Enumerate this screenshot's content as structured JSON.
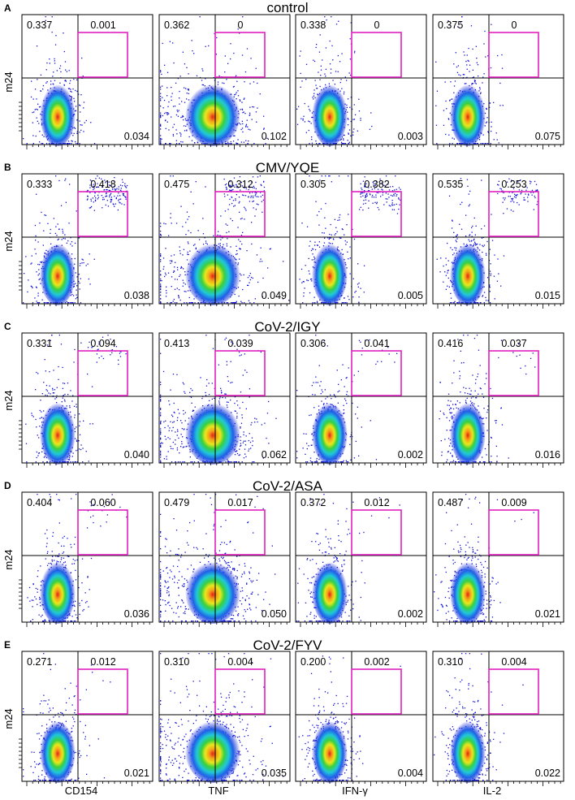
{
  "chart_data": {
    "type": "scatter",
    "plot_style": "flow cytometry density dot plots (pseudocolor)",
    "x_axis_labels": [
      "CD154",
      "TNF",
      "IFN-γ",
      "IL-2"
    ],
    "y_axis_label": "m24",
    "gate_color": "#e020c0",
    "scale": "log (biexponential)",
    "panels": [
      {
        "label": "A",
        "title": "control",
        "plots": [
          {
            "marker": "CD154",
            "upper_left": "0.337",
            "upper_right": "0.001",
            "lower_right": "0.034"
          },
          {
            "marker": "TNF",
            "upper_left": "0.362",
            "upper_right": "0",
            "lower_right": "0.102"
          },
          {
            "marker": "IFN-γ",
            "upper_left": "0.338",
            "upper_right": "0",
            "lower_right": "0.003"
          },
          {
            "marker": "IL-2",
            "upper_left": "0.375",
            "upper_right": "0",
            "lower_right": "0.075"
          }
        ]
      },
      {
        "label": "B",
        "title": "CMV/YQE",
        "plots": [
          {
            "marker": "CD154",
            "upper_left": "0.333",
            "upper_right": "0.418",
            "lower_right": "0.038"
          },
          {
            "marker": "TNF",
            "upper_left": "0.475",
            "upper_right": "0.312",
            "lower_right": "0.049"
          },
          {
            "marker": "IFN-γ",
            "upper_left": "0.305",
            "upper_right": "0.382",
            "lower_right": "0.005"
          },
          {
            "marker": "IL-2",
            "upper_left": "0.535",
            "upper_right": "0.253",
            "lower_right": "0.015"
          }
        ]
      },
      {
        "label": "C",
        "title": "CoV-2/IGY",
        "plots": [
          {
            "marker": "CD154",
            "upper_left": "0.331",
            "upper_right": "0.094",
            "lower_right": "0.040"
          },
          {
            "marker": "TNF",
            "upper_left": "0.413",
            "upper_right": "0.039",
            "lower_right": "0.062"
          },
          {
            "marker": "IFN-γ",
            "upper_left": "0.306",
            "upper_right": "0.041",
            "lower_right": "0.002"
          },
          {
            "marker": "IL-2",
            "upper_left": "0.416",
            "upper_right": "0.037",
            "lower_right": "0.016"
          }
        ]
      },
      {
        "label": "D",
        "title": "CoV-2/ASA",
        "plots": [
          {
            "marker": "CD154",
            "upper_left": "0.404",
            "upper_right": "0.060",
            "lower_right": "0.036"
          },
          {
            "marker": "TNF",
            "upper_left": "0.479",
            "upper_right": "0.017",
            "lower_right": "0.050"
          },
          {
            "marker": "IFN-γ",
            "upper_left": "0.372",
            "upper_right": "0.012",
            "lower_right": "0.002"
          },
          {
            "marker": "IL-2",
            "upper_left": "0.487",
            "upper_right": "0.009",
            "lower_right": "0.021"
          }
        ]
      },
      {
        "label": "E",
        "title": "CoV-2/FYV",
        "plots": [
          {
            "marker": "CD154",
            "upper_left": "0.271",
            "upper_right": "0.012",
            "lower_right": "0.021"
          },
          {
            "marker": "TNF",
            "upper_left": "0.310",
            "upper_right": "0.004",
            "lower_right": "0.035"
          },
          {
            "marker": "IFN-γ",
            "upper_left": "0.200",
            "upper_right": "0.002",
            "lower_right": "0.004"
          },
          {
            "marker": "IL-2",
            "upper_left": "0.310",
            "upper_right": "0.004",
            "lower_right": "0.022"
          }
        ]
      }
    ]
  }
}
